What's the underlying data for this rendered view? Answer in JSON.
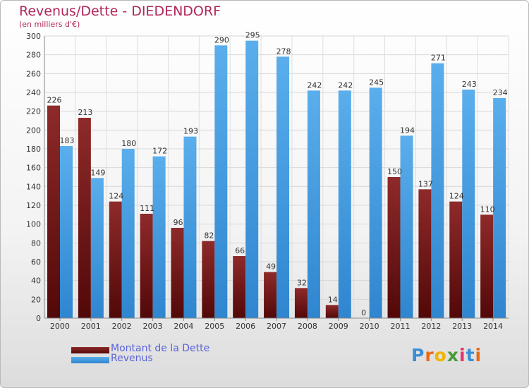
{
  "header": {
    "title": "Revenus/Dette - DIEDENDORF",
    "subtitle": "(en milliers d'€)"
  },
  "legend": {
    "debt_label": "Montant de la Dette",
    "revenue_label": "Revenus"
  },
  "logo": {
    "text": "Proxiti",
    "letter_colors": [
      "#3a8ed6",
      "#e86a16",
      "#f0b400",
      "#4a9a3a",
      "#e8326e",
      "#3a8ed6",
      "#e86a16"
    ]
  },
  "colors": {
    "debt": "#7a1a1a",
    "revenue": "#4aa3e6",
    "title": "#b0275a",
    "legend_text": "#5a63d8"
  },
  "chart_data": {
    "type": "bar",
    "title": "Revenus/Dette - DIEDENDORF",
    "ylabel": "(en milliers d'€)",
    "categories": [
      "2000",
      "2001",
      "2002",
      "2003",
      "2004",
      "2005",
      "2006",
      "2007",
      "2008",
      "2009",
      "2010",
      "2011",
      "2012",
      "2013",
      "2014"
    ],
    "series": [
      {
        "name": "Montant de la Dette",
        "values": [
          226,
          213,
          124,
          111,
          96,
          82,
          66,
          49,
          32,
          14,
          0,
          150,
          137,
          124,
          110
        ]
      },
      {
        "name": "Revenus",
        "values": [
          183,
          149,
          180,
          172,
          193,
          290,
          295,
          278,
          242,
          242,
          245,
          194,
          271,
          243,
          234
        ]
      }
    ],
    "ylim": [
      0,
      300
    ],
    "yticks": [
      0,
      20,
      40,
      60,
      80,
      100,
      120,
      140,
      160,
      180,
      200,
      220,
      240,
      260,
      280,
      300
    ],
    "grid": true
  }
}
